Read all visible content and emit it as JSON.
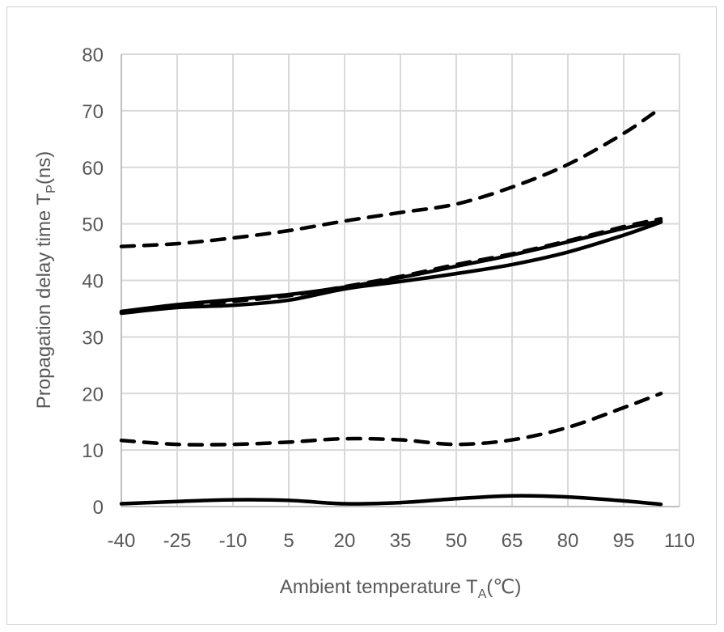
{
  "chart_data": {
    "type": "line",
    "title": "",
    "xlabel": "Ambient temperature T",
    "xlabel_sub": "A",
    "xlabel_unit": "(℃)",
    "ylabel": "Propagation delay time T",
    "ylabel_sub": "P",
    "ylabel_unit": "(ns)",
    "xlim": [
      -40,
      110
    ],
    "ylim": [
      0,
      80
    ],
    "x_ticks": [
      -40,
      -25,
      -10,
      5,
      20,
      35,
      50,
      65,
      80,
      95,
      110
    ],
    "y_ticks": [
      0,
      10,
      20,
      30,
      40,
      50,
      60,
      70,
      80
    ],
    "grid": true,
    "x": [
      -40,
      -25,
      -10,
      5,
      20,
      35,
      50,
      65,
      80,
      95,
      105
    ],
    "series": [
      {
        "style": "dashed",
        "color": "#000000",
        "values": [
          46,
          46.5,
          47.5,
          48.8,
          50.5,
          52,
          53.5,
          56.5,
          60.5,
          66,
          70.5
        ]
      },
      {
        "style": "solid",
        "color": "#000000",
        "values": [
          34.5,
          35.7,
          36.6,
          37.5,
          38.8,
          40.5,
          42.5,
          44.5,
          46.8,
          49.2,
          50.5
        ]
      },
      {
        "style": "solid",
        "color": "#000000",
        "values": [
          34.2,
          35.2,
          35.6,
          36.5,
          38.5,
          39.8,
          41.2,
          42.8,
          45,
          48,
          50.3
        ]
      },
      {
        "style": "dashed",
        "color": "#000000",
        "values": [
          34.3,
          35.5,
          36.3,
          37.3,
          38.9,
          40.7,
          42.8,
          44.7,
          47,
          49.5,
          50.9
        ]
      },
      {
        "style": "dashed",
        "color": "#000000",
        "values": [
          11.7,
          11,
          11,
          11.4,
          12,
          11.8,
          11,
          11.8,
          14,
          17.5,
          20
        ]
      },
      {
        "style": "solid",
        "color": "#000000",
        "values": [
          0.5,
          0.9,
          1.2,
          1.1,
          0.5,
          0.7,
          1.4,
          1.9,
          1.7,
          1.0,
          0.4
        ]
      }
    ]
  }
}
